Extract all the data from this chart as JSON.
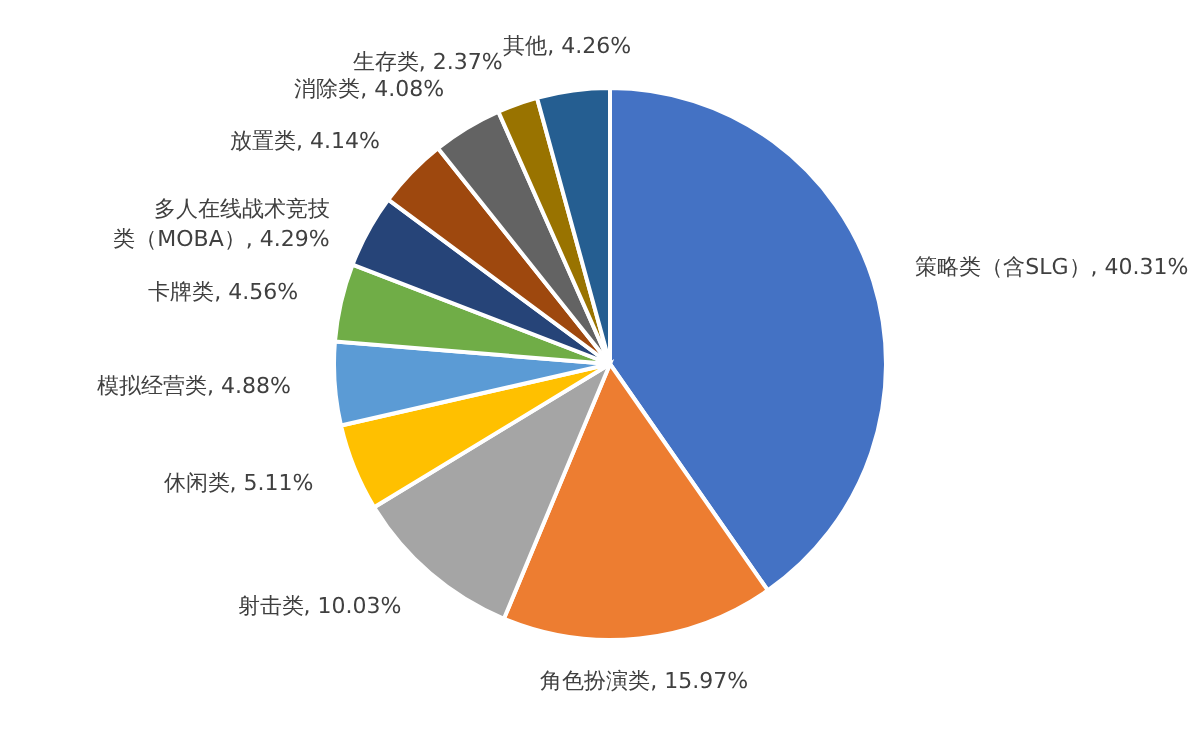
{
  "chart_data": {
    "type": "pie",
    "categories": [
      "策略类（含SLG）",
      "角色扮演类",
      "射击类",
      "休闲类",
      "模拟经营类",
      "卡牌类",
      "多人在线战术竞技类（MOBA）",
      "放置类",
      "消除类",
      "生存类",
      "其他"
    ],
    "values": [
      40.31,
      15.97,
      10.03,
      5.11,
      4.88,
      4.56,
      4.29,
      4.14,
      4.08,
      2.37,
      4.26
    ],
    "value_labels": [
      "40.31%",
      "15.97%",
      "10.03%",
      "5.11%",
      "4.88%",
      "4.56%",
      "4.29%",
      "4.14%",
      "4.08%",
      "2.37%",
      "4.26%"
    ],
    "colors": [
      "#4472c4",
      "#ed7d31",
      "#a5a5a5",
      "#ffc000",
      "#5b9bd5",
      "#70ad47",
      "#264478",
      "#9e480e",
      "#636363",
      "#997300",
      "#255e91"
    ]
  }
}
